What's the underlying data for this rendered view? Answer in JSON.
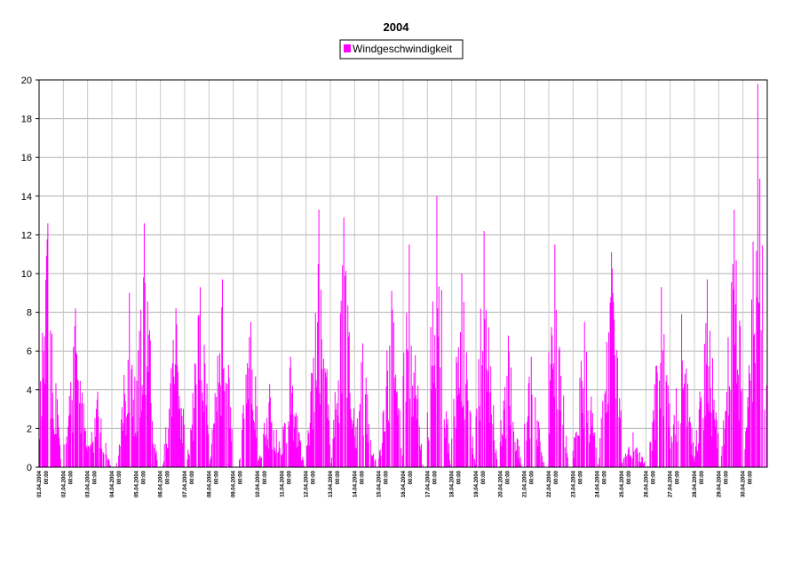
{
  "chart_data": {
    "type": "bar",
    "title": "2004",
    "xlabel": "",
    "ylabel": "",
    "ylim": [
      0,
      20
    ],
    "y_ticks": [
      0,
      2,
      4,
      6,
      8,
      10,
      12,
      14,
      16,
      18,
      20
    ],
    "grid": true,
    "legend_position": "top-center",
    "series": [
      {
        "name": "Windgeschwindigkeit",
        "color": "#ff00ff",
        "day_peaks": [
          12.6,
          8.2,
          3.9,
          9.0,
          12.6,
          8.2,
          9.3,
          9.7,
          7.5,
          4.3,
          5.7,
          13.3,
          12.9,
          6.4,
          9.1,
          11.5,
          14.0,
          10.0,
          12.2,
          6.8,
          5.7,
          11.5,
          7.5,
          11.1,
          1.8,
          9.3,
          7.9,
          9.7,
          13.3,
          19.8
        ]
      }
    ],
    "categories": [
      "01.04.2004 00:00",
      "02.04.2004 00:00",
      "03.04.2004 00:00",
      "04.04.2004 00:00",
      "05.04.2004 00:00",
      "06.04.2004 00:00",
      "07.04.2004 00:00",
      "08.04.2004 00:00",
      "09.04.2004 00:00",
      "10.04.2004 00:00",
      "11.04.2004 00:00",
      "12.04.2004 00:00",
      "13.04.2004 00:00",
      "14.04.2004 00:00",
      "15.04.2004 00:00",
      "16.04.2004 00:00",
      "17.04.2004 00:00",
      "18.04.2004 00:00",
      "19.04.2004 00:00",
      "20.04.2004 00:00",
      "21.04.2004 00:00",
      "22.04.2004 00:00",
      "23.04.2004 00:00",
      "24.04.2004 00:00",
      "25.04.2004 00:00",
      "26.04.2004 00:00",
      "27.04.2004 00:00",
      "28.04.2004 00:00",
      "29.04.2004 00:00",
      "30.04.2004 00:00"
    ]
  }
}
